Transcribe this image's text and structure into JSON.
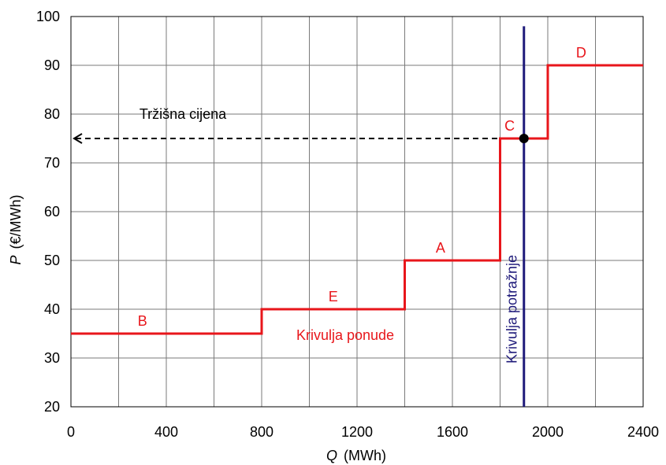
{
  "chart_data": {
    "type": "line",
    "xlabel": {
      "var": "Q",
      "unit": "(MWh)"
    },
    "ylabel": {
      "var": "P",
      "unit": "(€/MWh)"
    },
    "xlim": [
      0,
      2400
    ],
    "ylim": [
      20,
      100
    ],
    "x_ticks": [
      0,
      400,
      800,
      1200,
      1600,
      2000,
      2400
    ],
    "y_ticks": [
      20,
      30,
      40,
      50,
      60,
      70,
      80,
      90,
      100
    ],
    "grid": true,
    "supply_curve": {
      "label": "Krivulja ponude",
      "color": "#e8161b",
      "points": [
        [
          0,
          35
        ],
        [
          800,
          35
        ],
        [
          800,
          40
        ],
        [
          1400,
          40
        ],
        [
          1400,
          50
        ],
        [
          1800,
          50
        ],
        [
          1800,
          75
        ],
        [
          2000,
          75
        ],
        [
          2000,
          90
        ],
        [
          2400,
          90
        ]
      ]
    },
    "supply_steps": [
      {
        "label": "B",
        "x": 300,
        "y": 35
      },
      {
        "label": "E",
        "x": 1100,
        "y": 40
      },
      {
        "label": "A",
        "x": 1550,
        "y": 50
      },
      {
        "label": "C",
        "x": 1840,
        "y": 75
      },
      {
        "label": "D",
        "x": 2140,
        "y": 90
      }
    ],
    "demand_curve": {
      "label": "Krivulja potražnje",
      "color": "#1f1a7a",
      "x": 1900,
      "y_range": [
        20,
        98
      ]
    },
    "equilibrium": {
      "x": 1900,
      "y": 75
    },
    "market_price": {
      "label": "Tržišna cijena",
      "value": 75
    }
  }
}
